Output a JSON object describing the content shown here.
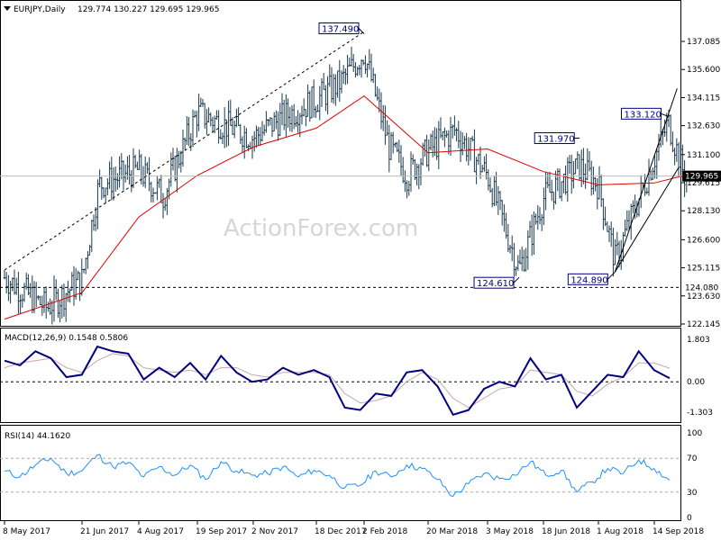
{
  "header": {
    "symbol": "EURJPY,Daily",
    "ohlc": "129.774 130.227 129.695 129.965",
    "collapse_icon": "triangle-down-icon"
  },
  "watermark": "ActionForex.com",
  "colors": {
    "bar": "#1a3a4e",
    "ma": "#e00000",
    "macd_main": "#000080",
    "macd_signal": "#c8a6a6",
    "rsi": "#1e90ff",
    "price_tag_bg": "#000000",
    "label_text": "#000080",
    "trendline": "#000000"
  },
  "chart_data": [
    {
      "type": "ohlc",
      "pane": "price",
      "symbol": "EURJPY",
      "timeframe": "Daily",
      "ylim": [
        122.145,
        138.56
      ],
      "y_ticks": [
        "137.085",
        "135.600",
        "134.115",
        "132.630",
        "131.100",
        "129.615",
        "128.130",
        "126.600",
        "125.115",
        "123.630",
        "122.145"
      ],
      "x_ticks": [
        "8 May 2017",
        "21 Jun 2017",
        "4 Aug 2017",
        "19 Sep 2017",
        "2 Nov 2017",
        "18 Dec 2017",
        "2 Feb 2018",
        "20 Mar 2018",
        "3 May 2018",
        "18 Jun 2018",
        "1 Aug 2018",
        "14 Sep 2018"
      ],
      "last_price": "129.965",
      "last_ohlc": {
        "open": 129.774,
        "high": 130.227,
        "low": 129.695,
        "close": 129.965
      },
      "closes": [
        {
          "date": "8 May 2017",
          "close": 124.6
        },
        {
          "date": "1 Jun 2017",
          "close": 123.0
        },
        {
          "date": "21 Jun 2017",
          "close": 124.5
        },
        {
          "date": "4 Jul 2017",
          "close": 129.5
        },
        {
          "date": "4 Aug 2017",
          "close": 130.3
        },
        {
          "date": "23 Aug 2017",
          "close": 128.9
        },
        {
          "date": "19 Sep 2017",
          "close": 133.3
        },
        {
          "date": "2 Nov 2017",
          "close": 132.0
        },
        {
          "date": "22 Nov 2017",
          "close": 133.0
        },
        {
          "date": "18 Dec 2017",
          "close": 134.0
        },
        {
          "date": "10 Jan 2018",
          "close": 134.9
        },
        {
          "date": "2 Feb 2018",
          "close": 136.5
        },
        {
          "date": "20 Feb 2018",
          "close": 131.5
        },
        {
          "date": "5 Mar 2018",
          "close": 130.0
        },
        {
          "date": "20 Mar 2018",
          "close": 131.3
        },
        {
          "date": "9 Apr 2018",
          "close": 132.4
        },
        {
          "date": "3 May 2018",
          "close": 130.0
        },
        {
          "date": "29 May 2018",
          "close": 125.0
        },
        {
          "date": "18 Jun 2018",
          "close": 128.8
        },
        {
          "date": "17 Jul 2018",
          "close": 130.5
        },
        {
          "date": "1 Aug 2018",
          "close": 129.5
        },
        {
          "date": "14 Aug 2018",
          "close": 125.5
        },
        {
          "date": "14 Sep 2018",
          "close": 130.9
        },
        {
          "date": "25 Sep 2018",
          "close": 132.8
        },
        {
          "date": "8 Oct 2018",
          "close": 129.965
        }
      ],
      "moving_average": [
        {
          "date": "8 May 2017",
          "value": 122.4
        },
        {
          "date": "21 Jun 2017",
          "value": 123.8
        },
        {
          "date": "4 Aug 2017",
          "value": 127.8
        },
        {
          "date": "19 Sep 2017",
          "value": 130.0
        },
        {
          "date": "2 Nov 2017",
          "value": 131.5
        },
        {
          "date": "18 Dec 2017",
          "value": 132.5
        },
        {
          "date": "2 Feb 2018",
          "value": 134.2
        },
        {
          "date": "20 Mar 2018",
          "value": 131.2
        },
        {
          "date": "3 May 2018",
          "value": 131.4
        },
        {
          "date": "18 Jun 2018",
          "value": 130.2
        },
        {
          "date": "1 Aug 2018",
          "value": 129.5
        },
        {
          "date": "14 Sep 2018",
          "value": 129.6
        },
        {
          "date": "8 Oct 2018",
          "value": 130.0
        }
      ],
      "horizontal_line": {
        "value": "124.080",
        "label": "124.080"
      },
      "annotations": [
        {
          "label": "137.490",
          "value": 137.49,
          "date": "2 Feb 2018"
        },
        {
          "label": "124.610",
          "value": 124.61,
          "date": "29 May 2018"
        },
        {
          "label": "131.970",
          "value": 131.97,
          "date": "17 Jul 2018"
        },
        {
          "label": "124.890",
          "value": 124.89,
          "date": "14 Aug 2018"
        },
        {
          "label": "133.120",
          "value": 133.12,
          "date": "25 Sep 2018"
        }
      ]
    },
    {
      "type": "line",
      "pane": "macd",
      "title": "MACD(12,26,9) 0.1548 0.5806",
      "ylim": [
        -1.6,
        2.0
      ],
      "y_ticks": [
        "1.803",
        "0.00",
        "-1.303"
      ],
      "main": [
        0.9,
        0.7,
        1.3,
        1.0,
        0.2,
        0.3,
        1.5,
        1.3,
        1.2,
        0.1,
        0.6,
        0.2,
        0.8,
        0.1,
        1.1,
        0.4,
        0.0,
        0.1,
        0.6,
        0.3,
        0.5,
        0.2,
        -1.1,
        -1.2,
        -0.5,
        -0.6,
        0.4,
        0.5,
        -0.2,
        -1.4,
        -1.2,
        -0.3,
        0.0,
        -0.2,
        1.0,
        0.1,
        0.3,
        -1.1,
        -0.4,
        0.3,
        0.2,
        1.3,
        0.5,
        0.15
      ],
      "signal": [
        0.6,
        0.8,
        0.9,
        1.0,
        0.6,
        0.4,
        0.9,
        1.2,
        1.1,
        0.6,
        0.5,
        0.4,
        0.5,
        0.3,
        0.6,
        0.6,
        0.3,
        0.2,
        0.4,
        0.4,
        0.4,
        0.3,
        -0.5,
        -0.9,
        -0.8,
        -0.6,
        0.0,
        0.4,
        0.1,
        -0.7,
        -1.1,
        -0.7,
        -0.3,
        -0.2,
        0.5,
        0.4,
        0.3,
        -0.4,
        -0.6,
        -0.1,
        0.2,
        0.8,
        0.8,
        0.58
      ]
    },
    {
      "type": "line",
      "pane": "rsi",
      "title": "RSI(14) 44.1620",
      "ylim": [
        0,
        100
      ],
      "y_ticks": [
        "100",
        "70",
        "30",
        "0"
      ],
      "levels": [
        70,
        30
      ],
      "values": [
        55,
        48,
        62,
        70,
        52,
        55,
        74,
        60,
        65,
        48,
        60,
        50,
        62,
        45,
        66,
        55,
        50,
        52,
        60,
        48,
        56,
        50,
        35,
        38,
        55,
        48,
        62,
        58,
        45,
        25,
        40,
        52,
        46,
        50,
        66,
        50,
        56,
        30,
        42,
        58,
        52,
        68,
        58,
        44.162
      ]
    }
  ]
}
